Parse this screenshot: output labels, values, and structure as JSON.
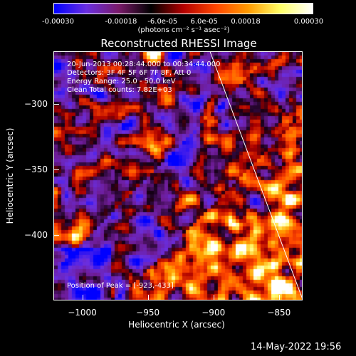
{
  "colorbar": {
    "ticks": [
      "-0.00030",
      "-0.00018",
      "-6.0e-05",
      "6.0e-05",
      "0.00018",
      "0.00030"
    ],
    "units": "(photons cm⁻² s⁻¹ asec⁻²)",
    "colors": [
      "#0000ff",
      "#6a2ee0",
      "#7a1a6a",
      "#000000",
      "#b30000",
      "#ff4500",
      "#ff9a00",
      "#ffff66",
      "#ffffff"
    ]
  },
  "chart_data": {
    "type": "heatmap",
    "title": "Reconstructed RHESSI Image",
    "xlabel": "Heliocentric X (arcsec)",
    "ylabel": "Heliocentric Y (arcsec)",
    "xlim": [
      -1022,
      -832
    ],
    "ylim": [
      -450,
      -260
    ],
    "x_ticks": [
      -1000,
      -950,
      -900,
      -850
    ],
    "y_ticks": [
      -300,
      -350,
      -400
    ],
    "x_tick_labels": [
      "−1000",
      "−950",
      "−900",
      "−850"
    ],
    "y_tick_labels": [
      "−300",
      "−350",
      "−400"
    ],
    "zlim": [
      -0.0003,
      0.0003
    ],
    "limb_line": [
      [
        -903,
        -260
      ],
      [
        -832,
        -450
      ]
    ],
    "annotations": [
      "20-Jun-2013 00:28:44.000 to 00:34:44.000",
      "Detectors: 3F 4F 5F 6F 7F 8F, Att 0",
      "Energy Range: 25.0 - 50.0 keV",
      "Clean     Total counts: 7.82E+03"
    ],
    "peak_label": "Position of Peak = [-923,-433]"
  },
  "datestamp": "14-May-2022 19:56"
}
